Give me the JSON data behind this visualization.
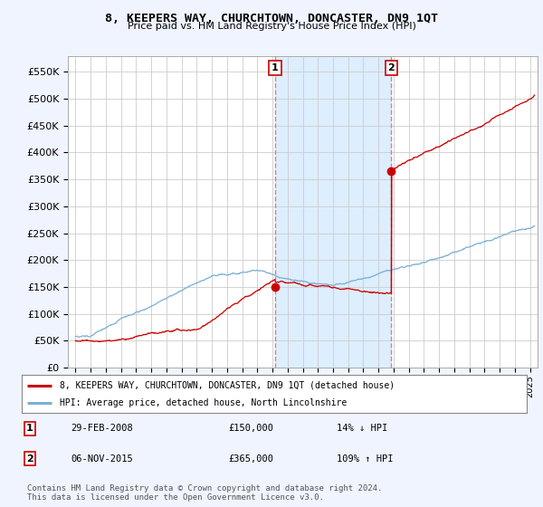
{
  "title": "8, KEEPERS WAY, CHURCHTOWN, DONCASTER, DN9 1QT",
  "subtitle": "Price paid vs. HM Land Registry's House Price Index (HPI)",
  "ylabel_ticks": [
    "£0",
    "£50K",
    "£100K",
    "£150K",
    "£200K",
    "£250K",
    "£300K",
    "£350K",
    "£400K",
    "£450K",
    "£500K",
    "£550K"
  ],
  "ylim": [
    0,
    580000
  ],
  "yticks": [
    0,
    50000,
    100000,
    150000,
    200000,
    250000,
    300000,
    350000,
    400000,
    450000,
    500000,
    550000
  ],
  "xlim_start": 1994.5,
  "xlim_end": 2025.5,
  "marker1_x": 2008.17,
  "marker1_y": 150000,
  "marker1_label": "1",
  "marker2_x": 2015.85,
  "marker2_y": 365000,
  "marker2_label": "2",
  "vline1_x": 2008.17,
  "vline2_x": 2015.85,
  "legend_line1": "8, KEEPERS WAY, CHURCHTOWN, DONCASTER, DN9 1QT (detached house)",
  "legend_line2": "HPI: Average price, detached house, North Lincolnshire",
  "line_color_red": "#cc0000",
  "line_color_blue": "#7ab0d4",
  "background_color": "#f0f4ff",
  "plot_bg_color": "#ffffff",
  "grid_color": "#cccccc",
  "vline_color": "#e08080",
  "shade_color": "#ddeeff",
  "footer": "Contains HM Land Registry data © Crown copyright and database right 2024.\nThis data is licensed under the Open Government Licence v3.0."
}
